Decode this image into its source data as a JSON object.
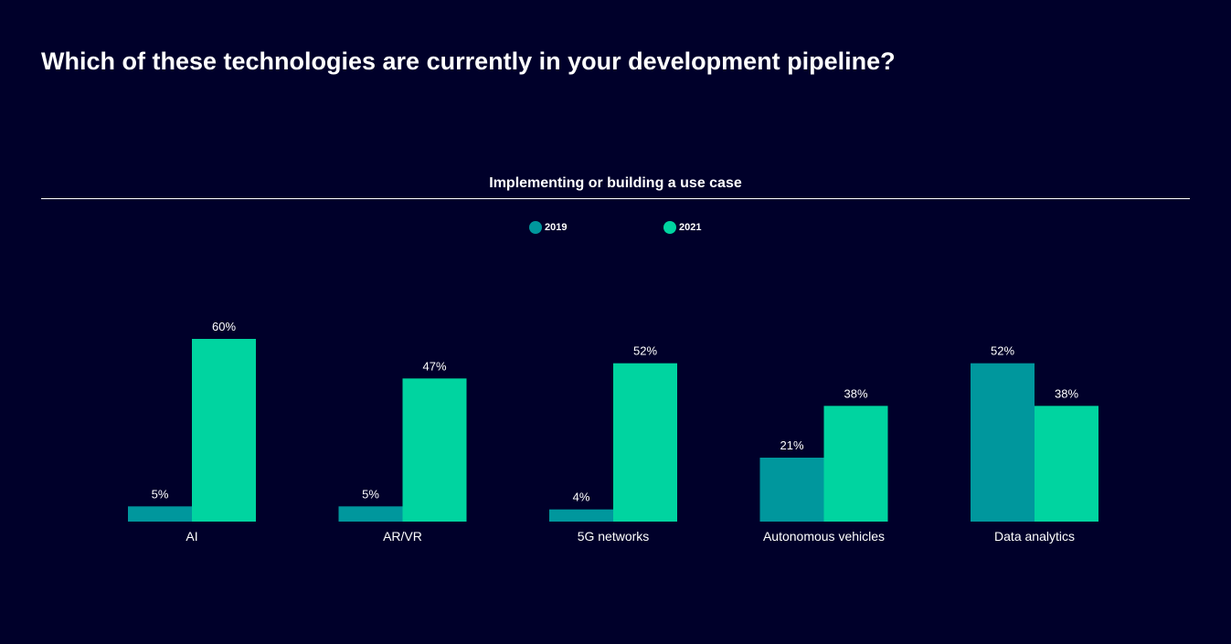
{
  "header": {
    "title": "Which of these technologies are currently in your development pipeline?"
  },
  "chart_data": {
    "type": "bar",
    "title": "Implementing or building a use case",
    "categories": [
      "AI",
      "AR/VR",
      "5G networks",
      "Autonomous vehicles",
      "Data analytics"
    ],
    "series": [
      {
        "name": "2019",
        "values": [
          5,
          5,
          4,
          21,
          52
        ],
        "color": "#00979d"
      },
      {
        "name": "2021",
        "values": [
          60,
          47,
          52,
          38,
          38
        ],
        "color": "#00d4a0"
      }
    ],
    "value_suffix": "%",
    "ylim": [
      0,
      100
    ],
    "grid": false,
    "legend_position": "top-center"
  }
}
